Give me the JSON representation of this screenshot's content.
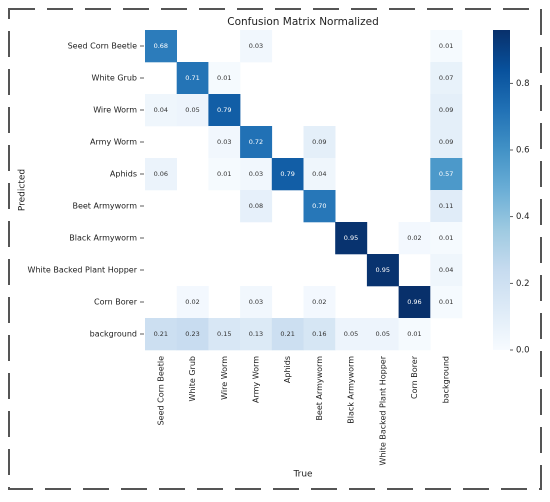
{
  "chart_data": {
    "type": "heatmap",
    "title": "Confusion Matrix Normalized",
    "x_label": "True",
    "y_label": "Predicted",
    "x_categories": [
      "Seed Corn Beetle",
      "White Grub",
      "Wire Worm",
      "Army Worm",
      "Aphids",
      "Beet Armyworm",
      "Black Armyworm",
      "White Backed Plant Hopper",
      "Corn Borer",
      "background"
    ],
    "y_categories": [
      "Seed Corn Beetle",
      "White Grub",
      "Wire Worm",
      "Army Worm",
      "Aphids",
      "Beet Armyworm",
      "Black Armyworm",
      "White Backed Plant Hopper",
      "Corn Borer",
      "background"
    ],
    "values": [
      [
        0.68,
        null,
        null,
        0.03,
        null,
        null,
        null,
        null,
        null,
        0.01
      ],
      [
        null,
        0.71,
        0.01,
        null,
        null,
        null,
        null,
        null,
        null,
        0.07
      ],
      [
        0.04,
        0.05,
        0.79,
        null,
        null,
        null,
        null,
        null,
        null,
        0.09
      ],
      [
        null,
        null,
        0.03,
        0.72,
        null,
        0.09,
        null,
        null,
        null,
        0.09
      ],
      [
        0.06,
        null,
        0.01,
        0.03,
        0.79,
        0.04,
        null,
        null,
        null,
        0.57
      ],
      [
        null,
        null,
        null,
        0.08,
        null,
        0.7,
        null,
        null,
        null,
        0.11
      ],
      [
        null,
        null,
        null,
        null,
        null,
        null,
        0.95,
        null,
        0.02,
        0.01
      ],
      [
        null,
        null,
        null,
        null,
        null,
        null,
        null,
        0.95,
        null,
        0.04
      ],
      [
        null,
        0.02,
        null,
        0.03,
        null,
        0.02,
        null,
        null,
        0.96,
        0.01
      ],
      [
        0.21,
        0.23,
        0.15,
        0.13,
        0.21,
        0.16,
        0.05,
        0.05,
        0.01,
        null
      ]
    ],
    "value_labels": [
      [
        "0.68",
        null,
        null,
        "0.03",
        null,
        null,
        null,
        null,
        null,
        "0.01"
      ],
      [
        null,
        "0.71",
        "0.01",
        null,
        null,
        null,
        null,
        null,
        null,
        "0.07"
      ],
      [
        "0.04",
        "0.05",
        "0.79",
        null,
        null,
        null,
        null,
        null,
        null,
        "0.09"
      ],
      [
        null,
        null,
        "0.03",
        "0.72",
        null,
        "0.09",
        null,
        null,
        null,
        "0.09"
      ],
      [
        "0.06",
        null,
        "0.01",
        "0.03",
        "0.79",
        "0.04",
        null,
        null,
        null,
        "0.57"
      ],
      [
        null,
        null,
        null,
        "0.08",
        null,
        "0.70",
        null,
        null,
        null,
        "0.11"
      ],
      [
        null,
        null,
        null,
        null,
        null,
        null,
        "0.95",
        null,
        "0.02",
        "0.01"
      ],
      [
        null,
        null,
        null,
        null,
        null,
        null,
        null,
        "0.95",
        null,
        "0.04"
      ],
      [
        null,
        "0.02",
        null,
        "0.03",
        null,
        "0.02",
        null,
        null,
        "0.96",
        "0.01"
      ],
      [
        "0.21",
        "0.23",
        "0.15",
        "0.13",
        "0.21",
        "0.16",
        "0.05",
        "0.05",
        "0.01",
        null
      ]
    ],
    "colormap": [
      "#f7fbff",
      "#deebf7",
      "#c6dbef",
      "#9ecae1",
      "#6baed6",
      "#4292c6",
      "#2171b5",
      "#08519c",
      "#08306b"
    ],
    "zlim": [
      0,
      0.96
    ],
    "zticks": [
      {
        "value": 0,
        "label": "0.0"
      },
      0.2,
      0.4,
      0.6,
      0.8
    ]
  }
}
